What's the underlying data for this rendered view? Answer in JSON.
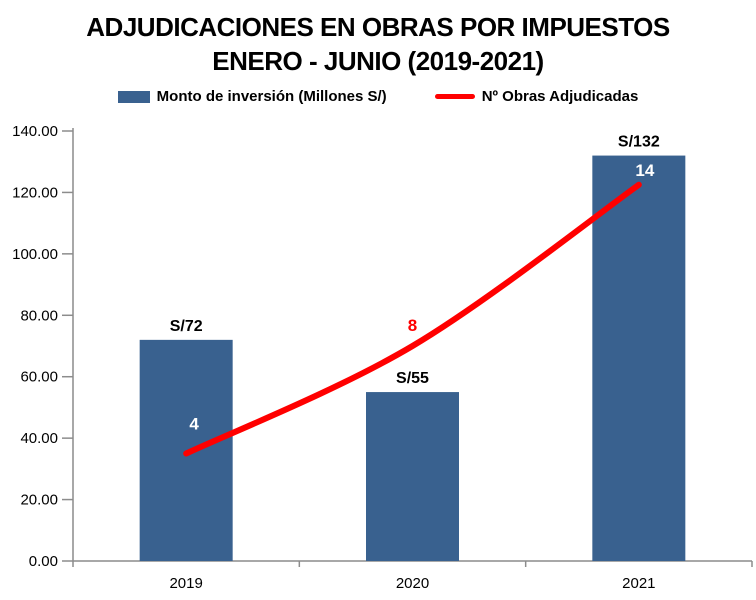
{
  "title": {
    "line1": "ADJUDICACIONES EN OBRAS POR IMPUESTOS",
    "line2": "ENERO - JUNIO (2019-2021)"
  },
  "legend": {
    "items": [
      {
        "label": "Monto de inversión (Millones S/)",
        "swatch": "bar-swatch",
        "color": "#39618F"
      },
      {
        "label": "Nº Obras Adjudicadas",
        "swatch": "line-swatch",
        "color": "#FF0000"
      }
    ]
  },
  "chart_data": {
    "type": "combo",
    "categories": [
      "2019",
      "2020",
      "2021"
    ],
    "series": [
      {
        "name": "Monto de inversión (Millones S/)",
        "type": "bar",
        "axis": "primary",
        "color": "#39618F",
        "values": [
          72,
          55,
          132
        ],
        "data_labels": [
          "S/72",
          "S/55",
          "S/132"
        ],
        "data_label_color": "#000000"
      },
      {
        "name": "Nº Obras Adjudicadas",
        "type": "line",
        "axis": "secondary",
        "smooth": true,
        "color": "#FF0000",
        "values": [
          4,
          8,
          14
        ],
        "data_labels": [
          "4",
          "8",
          "14"
        ],
        "data_label_colors": [
          "#FFFFFF",
          "#FF0000",
          "#FFFFFF"
        ]
      }
    ],
    "y_axis": {
      "min": 0,
      "max": 140,
      "tick_labels": [
        "0.00",
        "20.00",
        "40.00",
        "60.00",
        "80.00",
        "100.00",
        "120.00",
        "140.00"
      ]
    },
    "secondary_y_axis": {
      "min": 0,
      "max": 16,
      "visible": false
    },
    "x_axis": {
      "tick_labels": [
        "2019",
        "2020",
        "2021"
      ]
    },
    "grid": false,
    "legend_position": "top",
    "axis_color": "#8C8C8C",
    "background": "#FFFFFF"
  }
}
